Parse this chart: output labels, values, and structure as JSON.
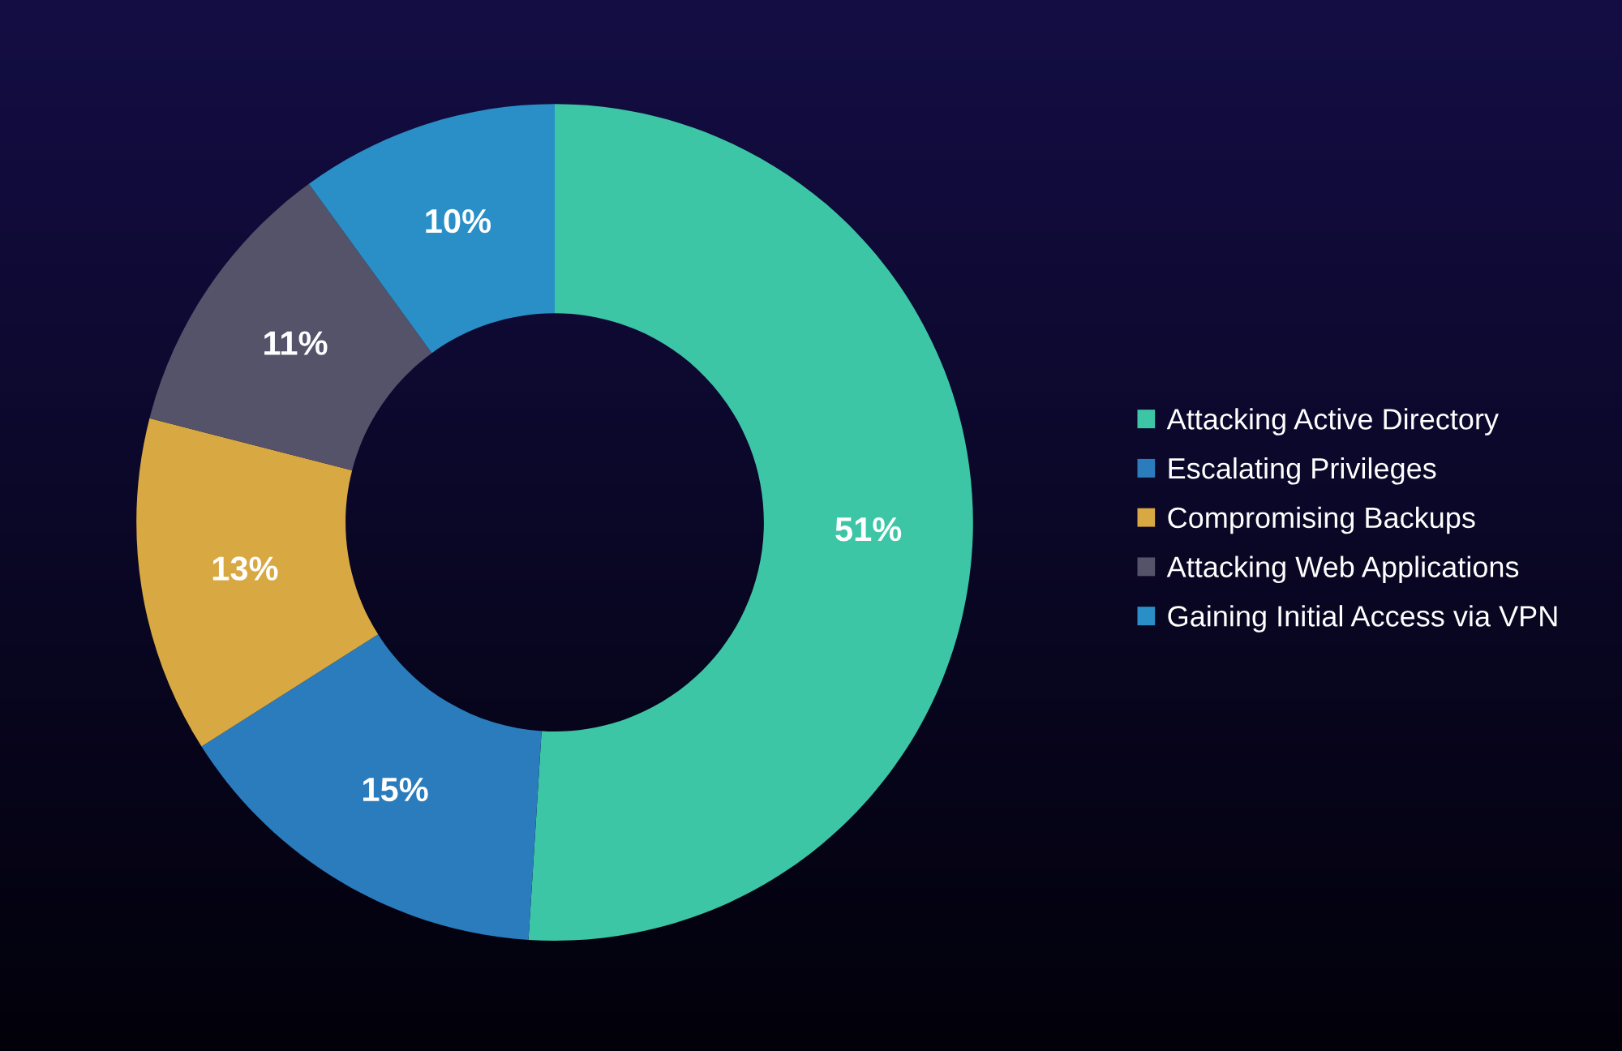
{
  "chart_data": {
    "type": "donut",
    "categories": [
      "Attacking Active Directory",
      "Escalating Privileges",
      "Compromising Backups",
      "Attacking Web Applications",
      "Gaining Initial Access via VPN"
    ],
    "values": [
      51,
      15,
      13,
      11,
      10
    ],
    "colors": [
      "#3cc6a6",
      "#2a7cbc",
      "#d8a843",
      "#55536a",
      "#2a8fc6"
    ],
    "value_labels": [
      "51%",
      "15%",
      "13%",
      "11%",
      "10%"
    ],
    "legend": "right"
  }
}
